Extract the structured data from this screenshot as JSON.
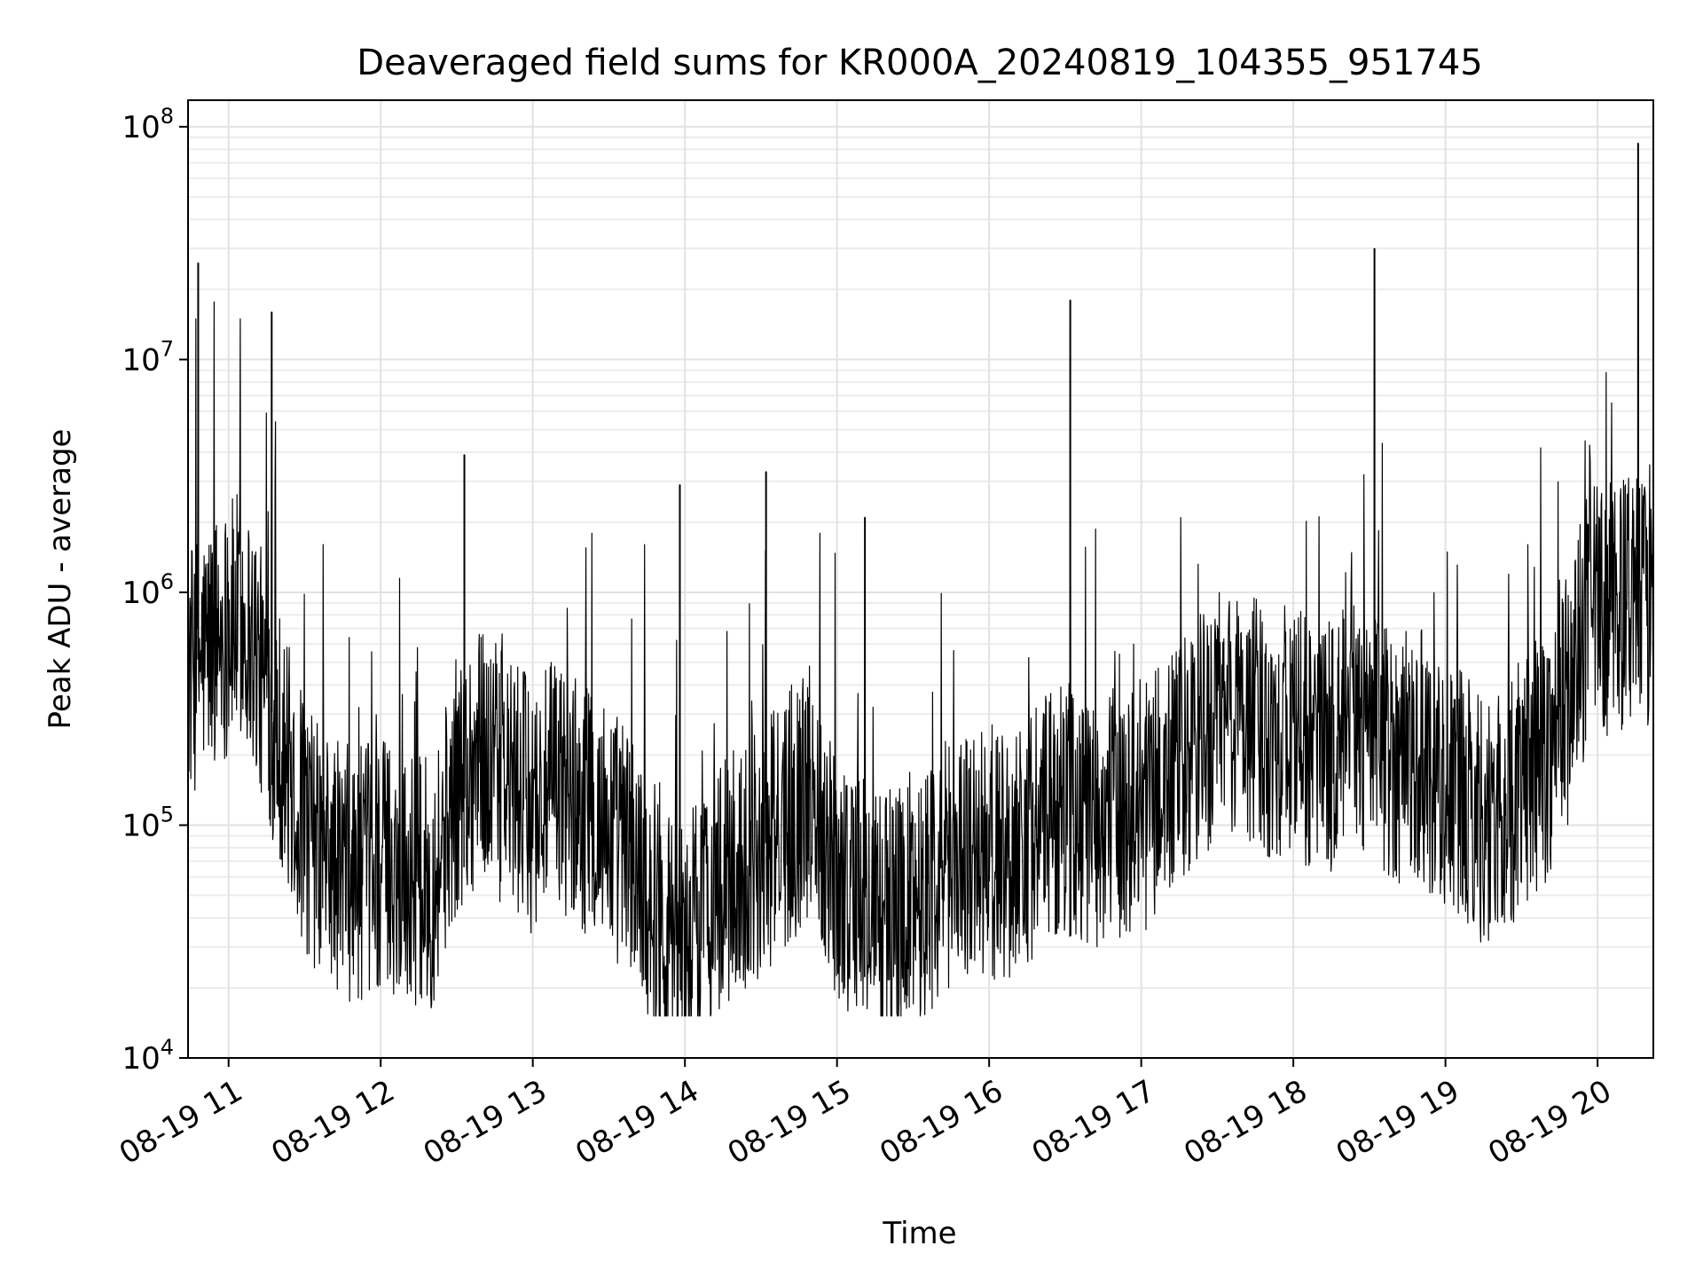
{
  "chart_data": {
    "type": "line",
    "title": "Deaveraged field sums for KR000A_20240819_104355_951745",
    "xlabel": "Time",
    "ylabel": "Peak ADU - average",
    "yscale": "log",
    "ylim": [
      10000,
      130000000
    ],
    "xlim": [
      "2024-08-19T10:44",
      "2024-08-19T20:22"
    ],
    "x_ticks": [
      "08-19 11",
      "08-19 12",
      "08-19 13",
      "08-19 14",
      "08-19 15",
      "08-19 16",
      "08-19 17",
      "08-19 18",
      "08-19 19",
      "08-19 20"
    ],
    "y_ticks": [
      {
        "base": "10",
        "exp": "4"
      },
      {
        "base": "10",
        "exp": "5"
      },
      {
        "base": "10",
        "exp": "6"
      },
      {
        "base": "10",
        "exp": "7"
      },
      {
        "base": "10",
        "exp": "8"
      }
    ],
    "grid": true,
    "line_color": "#000000",
    "series": [
      {
        "name": "",
        "x": [
          "2024-08-19T10:44",
          "2024-08-19T10:50",
          "2024-08-19T10:55",
          "2024-08-19T11:00",
          "2024-08-19T11:05",
          "2024-08-19T11:10",
          "2024-08-19T11:15",
          "2024-08-19T11:20",
          "2024-08-19T11:25",
          "2024-08-19T11:30",
          "2024-08-19T11:35",
          "2024-08-19T11:40",
          "2024-08-19T11:50",
          "2024-08-19T12:00",
          "2024-08-19T12:10",
          "2024-08-19T12:20",
          "2024-08-19T12:30",
          "2024-08-19T12:40",
          "2024-08-19T12:50",
          "2024-08-19T13:00",
          "2024-08-19T13:10",
          "2024-08-19T13:20",
          "2024-08-19T13:30",
          "2024-08-19T13:40",
          "2024-08-19T13:50",
          "2024-08-19T14:00",
          "2024-08-19T14:10",
          "2024-08-19T14:20",
          "2024-08-19T14:30",
          "2024-08-19T14:40",
          "2024-08-19T14:50",
          "2024-08-19T15:00",
          "2024-08-19T15:10",
          "2024-08-19T15:20",
          "2024-08-19T15:30",
          "2024-08-19T15:40",
          "2024-08-19T15:50",
          "2024-08-19T16:00",
          "2024-08-19T16:10",
          "2024-08-19T16:20",
          "2024-08-19T16:30",
          "2024-08-19T16:40",
          "2024-08-19T16:50",
          "2024-08-19T17:00",
          "2024-08-19T17:10",
          "2024-08-19T17:20",
          "2024-08-19T17:30",
          "2024-08-19T17:40",
          "2024-08-19T17:50",
          "2024-08-19T18:00",
          "2024-08-19T18:10",
          "2024-08-19T18:20",
          "2024-08-19T18:30",
          "2024-08-19T18:40",
          "2024-08-19T18:50",
          "2024-08-19T19:00",
          "2024-08-19T19:10",
          "2024-08-19T19:20",
          "2024-08-19T19:30",
          "2024-08-19T19:40",
          "2024-08-19T19:50",
          "2024-08-19T19:55",
          "2024-08-19T20:00",
          "2024-08-19T20:05",
          "2024-08-19T20:10",
          "2024-08-19T20:15",
          "2024-08-19T20:22"
        ],
        "y": [
          450000,
          550000,
          650000,
          700000,
          800000,
          600000,
          350000,
          250000,
          150000,
          100000,
          80000,
          70000,
          60000,
          70000,
          60000,
          55000,
          150000,
          200000,
          150000,
          120000,
          150000,
          120000,
          100000,
          70000,
          40000,
          30000,
          50000,
          60000,
          80000,
          100000,
          150000,
          60000,
          50000,
          40000,
          50000,
          60000,
          80000,
          70000,
          80000,
          100000,
          120000,
          100000,
          110000,
          120000,
          150000,
          200000,
          300000,
          300000,
          250000,
          250000,
          200000,
          250000,
          250000,
          200000,
          200000,
          150000,
          120000,
          100000,
          150000,
          200000,
          400000,
          700000,
          850000,
          850000,
          900000,
          900000,
          900000
        ]
      }
    ],
    "spikes": [
      {
        "x": "2024-08-19T10:48",
        "y": 26000000
      },
      {
        "x": "2024-08-19T11:17",
        "y": 16000000
      },
      {
        "x": "2024-08-19T12:33",
        "y": 3900000
      },
      {
        "x": "2024-08-19T13:58",
        "y": 2900000
      },
      {
        "x": "2024-08-19T14:32",
        "y": 3300000
      },
      {
        "x": "2024-08-19T15:11",
        "y": 2100000
      },
      {
        "x": "2024-08-19T16:32",
        "y": 18000000
      },
      {
        "x": "2024-08-19T18:32",
        "y": 30000000
      },
      {
        "x": "2024-08-19T20:16",
        "y": 85000000
      }
    ]
  }
}
